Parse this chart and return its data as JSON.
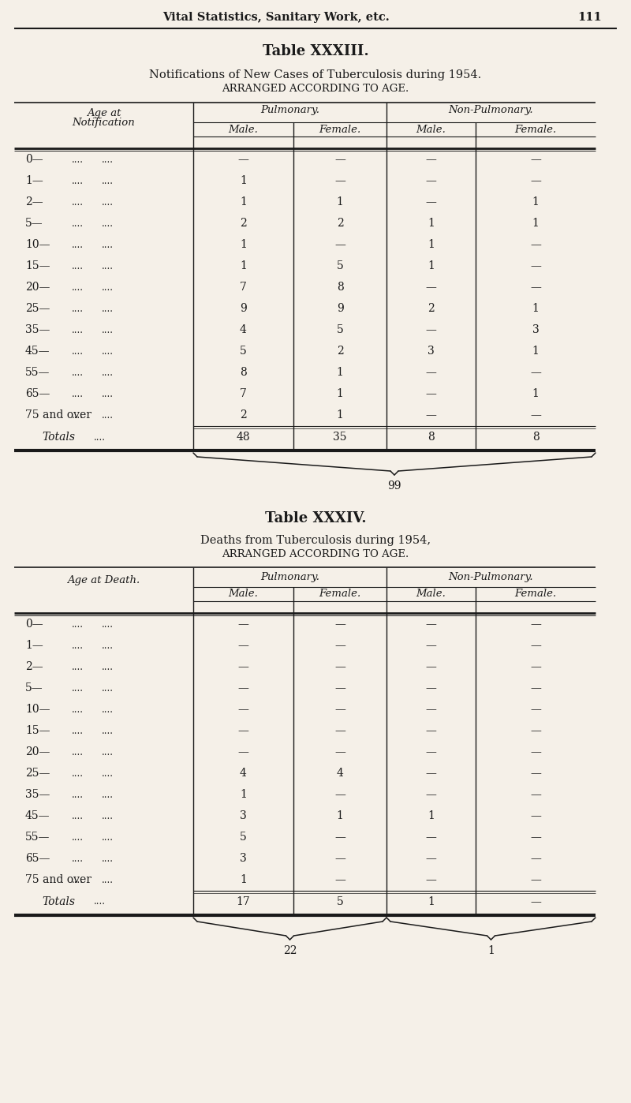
{
  "bg_color": "#f5f0e8",
  "text_color": "#1a1a1a",
  "page_header": "Vital Statistics, Sanitary Work, etc.",
  "page_number": "111",
  "table1": {
    "title": "Table XXXIII.",
    "subtitle1": "Notifications of New Cases of Tuberculosis during 1954.",
    "subtitle2": "ARRANGED ACCORDING TO AGE.",
    "col_group1": "Pulmonary.",
    "col_group2": "Non-Pulmonary.",
    "col_sub1": "Male.",
    "col_sub2": "Female.",
    "col_sub3": "Male.",
    "col_sub4": "Female.",
    "age_rows": [
      "0—",
      "1—",
      "2—",
      "5—",
      "10—",
      "15—",
      "20—",
      "25—",
      "35—",
      "45—",
      "55—",
      "65—",
      "75 and over"
    ],
    "data": [
      [
        "—",
        "—",
        "—",
        "—"
      ],
      [
        "1",
        "—",
        "—",
        "—"
      ],
      [
        "1",
        "1",
        "—",
        "1"
      ],
      [
        "2",
        "2",
        "1",
        "1"
      ],
      [
        "1",
        "—",
        "1",
        "—"
      ],
      [
        "1",
        "5",
        "1",
        "—"
      ],
      [
        "7",
        "8",
        "—",
        "—"
      ],
      [
        "9",
        "9",
        "2",
        "1"
      ],
      [
        "4",
        "5",
        "—",
        "3"
      ],
      [
        "5",
        "2",
        "3",
        "1"
      ],
      [
        "8",
        "1",
        "—",
        "—"
      ],
      [
        "7",
        "1",
        "—",
        "1"
      ],
      [
        "2",
        "1",
        "—",
        "—"
      ]
    ],
    "totals": [
      "48",
      "35",
      "8",
      "8"
    ],
    "grand_total": "99"
  },
  "table2": {
    "title": "Table XXXIV.",
    "subtitle1": "Deaths from Tuberculosis during 1954,",
    "subtitle2": "ARRANGED ACCORDING TO AGE.",
    "col_group1": "Pulmonary.",
    "col_group2": "Non-Pulmonary.",
    "col_sub1": "Male.",
    "col_sub2": "Female.",
    "col_sub3": "Male.",
    "col_sub4": "Female.",
    "age_rows": [
      "0—",
      "1—",
      "2—",
      "5—",
      "10—",
      "15—",
      "20—",
      "25—",
      "35—",
      "45—",
      "55—",
      "65—",
      "75 and over"
    ],
    "data": [
      [
        "—",
        "—",
        "—",
        "—"
      ],
      [
        "—",
        "—",
        "—",
        "—"
      ],
      [
        "—",
        "—",
        "—",
        "—"
      ],
      [
        "—",
        "—",
        "—",
        "—"
      ],
      [
        "—",
        "—",
        "—",
        "—"
      ],
      [
        "—",
        "—",
        "—",
        "—"
      ],
      [
        "—",
        "—",
        "—",
        "—"
      ],
      [
        "4",
        "4",
        "—",
        "—"
      ],
      [
        "1",
        "—",
        "—",
        "—"
      ],
      [
        "3",
        "1",
        "1",
        "—"
      ],
      [
        "5",
        "—",
        "—",
        "—"
      ],
      [
        "3",
        "—",
        "—",
        "—"
      ],
      [
        "1",
        "—",
        "—",
        "—"
      ]
    ],
    "totals": [
      "17",
      "5",
      "1",
      "—"
    ],
    "grand_total1": "22",
    "grand_total2": "1"
  }
}
